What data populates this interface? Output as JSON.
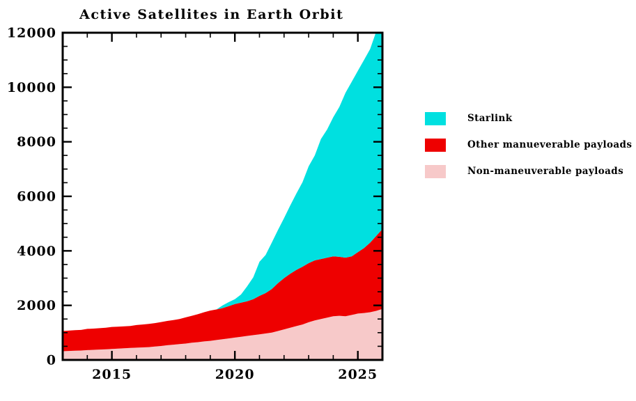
{
  "page": {
    "background": "#ffffff"
  },
  "chart_data": {
    "type": "area",
    "stacked": true,
    "title": "Active Satellites in Earth Orbit",
    "xlabel": "",
    "ylabel": "",
    "xlim": [
      2013,
      2026
    ],
    "ylim": [
      0,
      12000
    ],
    "x_major_ticks": [
      2015,
      2020,
      2025
    ],
    "x_minor_step": 1,
    "y_major_ticks": [
      0,
      2000,
      4000,
      6000,
      8000,
      10000,
      12000
    ],
    "y_minor_step": 500,
    "grid": false,
    "legend_position": "right",
    "frame_color": "#000000",
    "x": [
      2013,
      2013.25,
      2013.5,
      2013.75,
      2014,
      2014.25,
      2014.5,
      2014.75,
      2015,
      2015.25,
      2015.5,
      2015.75,
      2016,
      2016.25,
      2016.5,
      2016.75,
      2017,
      2017.25,
      2017.5,
      2017.75,
      2018,
      2018.25,
      2018.5,
      2018.75,
      2019,
      2019.25,
      2019.5,
      2019.75,
      2020,
      2020.25,
      2020.5,
      2020.75,
      2021,
      2021.25,
      2021.5,
      2021.75,
      2022,
      2022.25,
      2022.5,
      2022.75,
      2023,
      2023.25,
      2023.5,
      2023.75,
      2024,
      2024.25,
      2024.5,
      2024.75,
      2025,
      2025.25,
      2025.5,
      2025.75,
      2026
    ],
    "series": [
      {
        "name": "Non-maneuverable payloads",
        "color": "#F7C9C9",
        "values": [
          320,
          330,
          340,
          345,
          360,
          370,
          380,
          390,
          400,
          415,
          430,
          440,
          450,
          460,
          470,
          490,
          510,
          540,
          560,
          580,
          600,
          630,
          650,
          680,
          700,
          730,
          760,
          790,
          820,
          850,
          880,
          910,
          940,
          970,
          1000,
          1060,
          1120,
          1180,
          1240,
          1300,
          1380,
          1450,
          1500,
          1550,
          1600,
          1620,
          1600,
          1650,
          1700,
          1720,
          1750,
          1800,
          1870
        ]
      },
      {
        "name": "Other manueverable payloads",
        "color": "#EE0000",
        "values": [
          740,
          745,
          750,
          755,
          780,
          780,
          785,
          790,
          810,
          805,
          800,
          805,
          830,
          840,
          850,
          860,
          880,
          890,
          900,
          920,
          960,
          990,
          1030,
          1070,
          1110,
          1120,
          1140,
          1180,
          1230,
          1250,
          1270,
          1320,
          1410,
          1480,
          1600,
          1750,
          1880,
          1980,
          2060,
          2120,
          2170,
          2200,
          2200,
          2200,
          2200,
          2160,
          2150,
          2150,
          2250,
          2380,
          2550,
          2750,
          2930
        ]
      },
      {
        "name": "Starlink",
        "color": "#00E0E0",
        "values": [
          0,
          0,
          0,
          0,
          0,
          0,
          0,
          0,
          0,
          0,
          0,
          0,
          0,
          0,
          0,
          0,
          0,
          0,
          0,
          0,
          0,
          0,
          0,
          0,
          0,
          0,
          100,
          150,
          180,
          300,
          550,
          800,
          1250,
          1400,
          1700,
          1950,
          2200,
          2500,
          2800,
          3100,
          3550,
          3850,
          4400,
          4700,
          5100,
          5500,
          6050,
          6400,
          6650,
          6900,
          7100,
          7500,
          7700
        ]
      }
    ]
  },
  "legend": {
    "items": [
      {
        "label": "Starlink",
        "color": "#00E0E0"
      },
      {
        "label": "Other manueverable payloads",
        "color": "#EE0000"
      },
      {
        "label": "Non-maneuverable payloads",
        "color": "#F7C9C9"
      }
    ]
  }
}
